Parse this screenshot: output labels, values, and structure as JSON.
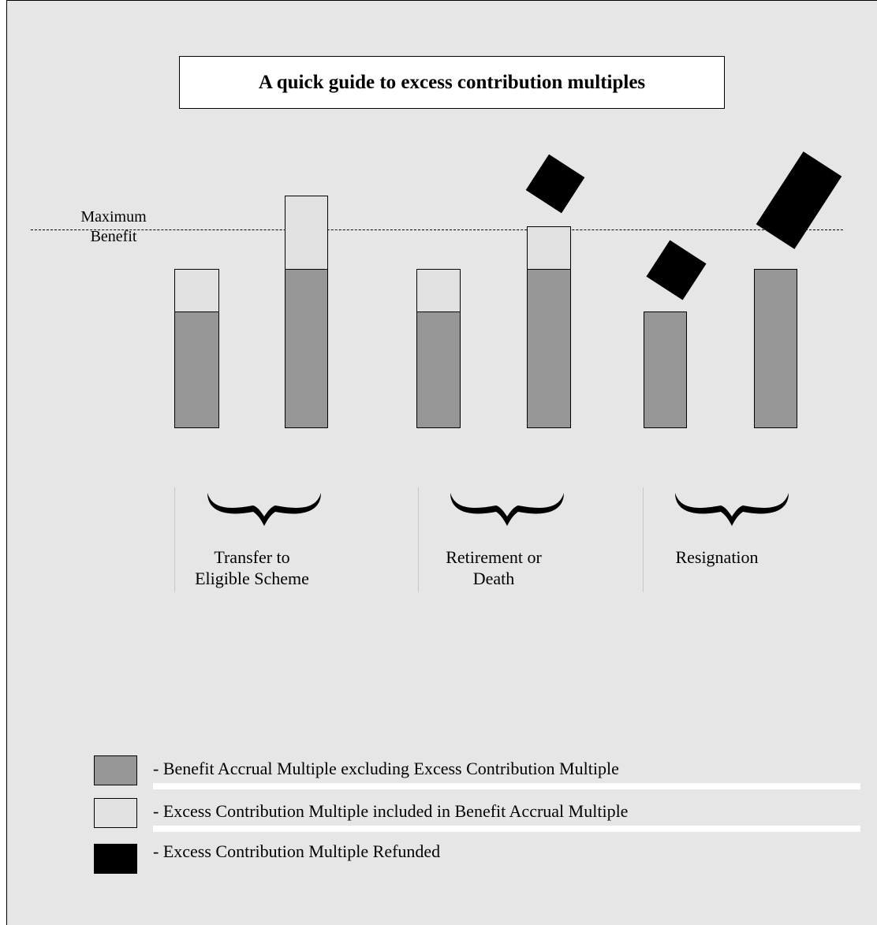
{
  "title": "A quick guide to excess contribution multiples",
  "max_benefit_label": [
    "Maximum",
    "Benefit"
  ],
  "groups": [
    {
      "label_lines": [
        "Transfer to",
        "Eligible Scheme"
      ]
    },
    {
      "label_lines": [
        "Retirement or",
        "Death"
      ]
    },
    {
      "label_lines": [
        "Resignation"
      ]
    }
  ],
  "legend": [
    {
      "label": "- Benefit Accrual Multiple excluding Excess Contribution Multiple",
      "color": "#969696"
    },
    {
      "label": "- Excess Contribution Multiple included in Benefit Accrual Multiple",
      "color": "#e1e1e1"
    },
    {
      "label": "- Excess Contribution Multiple Refunded",
      "color": "#000000"
    }
  ],
  "colors": {
    "background": "#e6e6e6",
    "accrual": "#969696",
    "excess_included": "#e1e1e1",
    "excess_refunded": "#000000"
  }
}
